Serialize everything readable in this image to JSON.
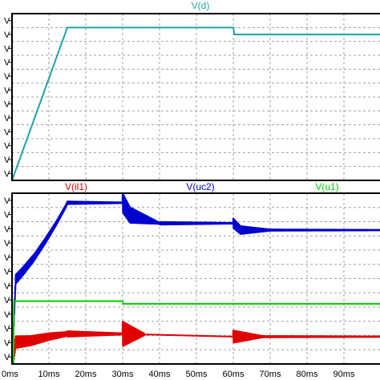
{
  "chart_data": [
    {
      "type": "line",
      "panel": "top",
      "title": "V(d)",
      "title_color": "#1fa3a6",
      "xlim": [
        0,
        100
      ],
      "ylim": [
        0,
        12
      ],
      "y_tick_labels": [
        "V",
        "V",
        "V",
        "V",
        "V",
        "V",
        "V",
        "V",
        "V",
        "V",
        "V",
        "V"
      ],
      "series": [
        {
          "name": "V(d)",
          "color": "#1fa3a6",
          "x": [
            0,
            15,
            60,
            60.3,
            100
          ],
          "y": [
            0,
            11,
            11,
            10.5,
            10.5
          ]
        }
      ]
    },
    {
      "type": "line",
      "panel": "bottom",
      "xlim": [
        0,
        100
      ],
      "ylim": [
        0,
        12.5
      ],
      "x_tick_labels": [
        "0ms",
        "10ms",
        "20ms",
        "30ms",
        "40ms",
        "50ms",
        "60ms",
        "70ms",
        "80ms",
        "90ms"
      ],
      "x_ticks": [
        0,
        10,
        20,
        30,
        40,
        50,
        60,
        70,
        80,
        90
      ],
      "y_tick_labels": [
        "V",
        "V",
        "V",
        "V",
        "V",
        "V",
        "V",
        "V",
        "V",
        "V",
        "V",
        "V"
      ],
      "series": [
        {
          "name": "V(il1)",
          "color": "#e00000",
          "kind": "current",
          "x": [
            0,
            1,
            5,
            10,
            15,
            30,
            60,
            100
          ],
          "y": [
            0,
            1.6,
            1.7,
            2.0,
            2.2,
            2.2,
            2.0,
            2.0
          ],
          "ripple": [
            [
              0,
              15,
              0.45,
              0.15
            ],
            [
              15,
              30,
              0.2,
              0.05
            ],
            [
              30,
              36,
              0.9,
              0.05
            ],
            [
              60,
              68,
              0.45,
              0.05
            ],
            [
              68,
              100,
              0.05,
              0.02
            ]
          ]
        },
        {
          "name": "V(uc2)",
          "color": "#0000d0",
          "x": [
            0,
            1,
            3,
            6,
            9,
            12,
            14.5,
            15,
            30,
            32,
            40,
            60,
            62,
            100
          ],
          "y": [
            0,
            6.2,
            6.8,
            7.8,
            9.0,
            10.3,
            11.5,
            11.8,
            11.8,
            10.9,
            10.3,
            10.3,
            9.8,
            9.8
          ],
          "ripple": [
            [
              0,
              15,
              0.35,
              0.1
            ],
            [
              15,
              30,
              0.1,
              0.03
            ],
            [
              30,
              40,
              0.7,
              0.05
            ],
            [
              40,
              60,
              0.1,
              0.03
            ],
            [
              60,
              70,
              0.35,
              0.05
            ],
            [
              70,
              100,
              0.05,
              0.02
            ]
          ]
        },
        {
          "name": "V(u1)",
          "color": "#00d000",
          "x": [
            0,
            0.4,
            0.5,
            30,
            30.1,
            100
          ],
          "y": [
            0,
            0,
            4.6,
            4.6,
            4.4,
            4.4
          ],
          "ripple": []
        }
      ],
      "legend_titles": [
        {
          "text": "V(il1)",
          "color": "#e00000"
        },
        {
          "text": "V(uc2)",
          "color": "#0000d0"
        },
        {
          "text": "V(u1)",
          "color": "#00d000"
        }
      ]
    }
  ]
}
